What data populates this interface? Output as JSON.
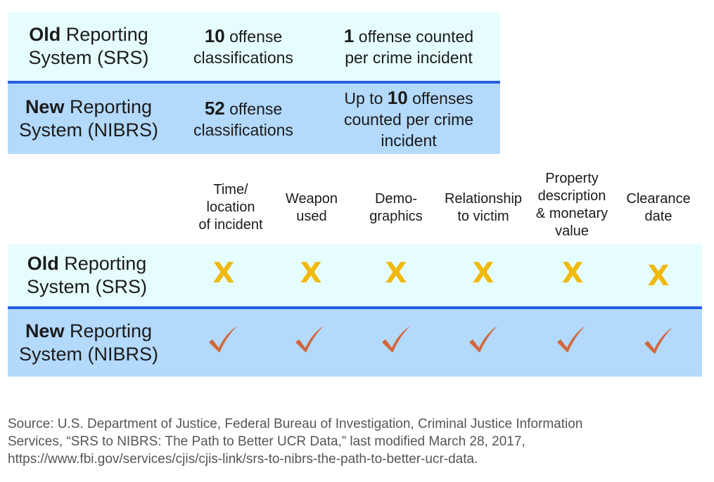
{
  "colors": {
    "old_band": "#e6fdfd",
    "new_band": "#b3d9fb",
    "divider": "#2a5fe0",
    "x_mark": "#f0b90e",
    "check_mark": "#d2663b"
  },
  "table1": {
    "old_row": {
      "bold": "Old",
      "rest": " Reporting",
      "line2": "System (SRS)",
      "col2_bold": "10",
      "col2_rest": " offense",
      "col2_line2": "classifications",
      "col3_bold": "1",
      "col3_rest": " offense counted",
      "col3_line2": "per crime incident"
    },
    "new_row": {
      "bold": "New",
      "rest": " Reporting",
      "line2": "System (NIBRS)",
      "col2_bold": "52",
      "col2_rest": " offense",
      "col2_line2": "classifications",
      "col3_pre": "Up to ",
      "col3_bold": "10",
      "col3_rest": " offenses",
      "col3_line2": "counted per  crime",
      "col3_line3": "incident"
    }
  },
  "table2": {
    "headers": [
      [
        "Time/",
        "location",
        "of incident"
      ],
      [
        "Weapon",
        "used"
      ],
      [
        "Demo-",
        "graphics"
      ],
      [
        "Relationship",
        "to victim"
      ],
      [
        "Property",
        "description",
        "& monetary",
        "value"
      ],
      [
        "Clearance",
        "date"
      ]
    ],
    "old_row": {
      "bold": "Old",
      "rest": " Reporting",
      "line2": "System (SRS)",
      "mark": "X",
      "mark_icon": "x-mark-icon"
    },
    "new_row": {
      "bold": "New",
      "rest": " Reporting",
      "line2": "System (NIBRS)",
      "mark_icon": "checkmark-icon"
    }
  },
  "source": {
    "line1": "Source: U.S. Department of Justice, Federal Bureau of Investigation, Criminal Justice Information",
    "line2": "Services, “SRS to NIBRS: The Path to Better UCR Data,” last modified March 28, 2017,",
    "line3": "https://www.fbi.gov/services/cjis/cjis-link/srs-to-nibrs-the-path-to-better-ucr-data."
  }
}
